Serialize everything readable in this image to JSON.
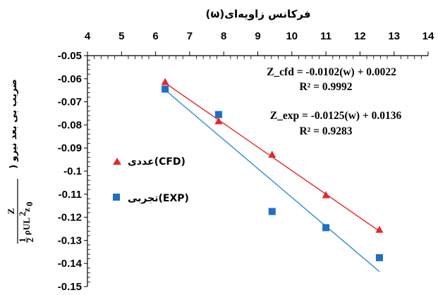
{
  "chart_data": {
    "type": "scatter",
    "title": "",
    "xlabel": "فرکانس زاویه‌ای(ω)",
    "ylabel": "ضریب بی بعد نیرو (",
    "ylabel_formula": {
      "numerator": "Z",
      "half_num": "1",
      "half_den": "2",
      "term": "ρUL",
      "sup": "2",
      "z": "z",
      "sub": "0"
    },
    "xlim": [
      4,
      14
    ],
    "ylim": [
      -0.15,
      -0.05
    ],
    "x_axis_position": "top",
    "x_ticks": [
      4,
      5,
      6,
      7,
      8,
      9,
      10,
      11,
      12,
      13,
      14
    ],
    "x_tick_labels": [
      "4",
      "5",
      "6",
      "7",
      "8",
      "9",
      "10",
      "11",
      "12",
      "13",
      "14"
    ],
    "y_ticks": [
      -0.05,
      -0.06,
      -0.07,
      -0.08,
      -0.09,
      -0.1,
      -0.11,
      -0.12,
      -0.13,
      -0.14,
      -0.15
    ],
    "y_tick_labels": [
      "-0.05",
      "-0.06",
      "-0.07",
      "-0.08",
      "-0.09",
      "-0.1",
      "-0.11",
      "-0.12",
      "-0.13",
      "-0.14",
      "-0.15"
    ],
    "grid": false,
    "series": [
      {
        "name": "عددی(CFD)",
        "marker": "triangle",
        "color": "#e8262a",
        "x": [
          6.28,
          7.85,
          9.42,
          11.0,
          12.57
        ],
        "y": [
          -0.0615,
          -0.0785,
          -0.093,
          -0.1105,
          -0.1255
        ],
        "trendline": {
          "slope": -0.0102,
          "intercept": 0.0022,
          "x_range": [
            6.28,
            12.57
          ]
        },
        "equation": "Z_cfd = -0.0102(w) + 0.0022",
        "r2": "R² = 0.9992"
      },
      {
        "name": "تجربی(EXP)",
        "marker": "square",
        "color": "#1f6fc4",
        "line_color": "#2e8fd0",
        "x": [
          6.28,
          7.85,
          9.42,
          11.0,
          12.57
        ],
        "y": [
          -0.0645,
          -0.0755,
          -0.1175,
          -0.1245,
          -0.1375
        ],
        "trendline": {
          "slope": -0.0125,
          "intercept": 0.0136,
          "x_range": [
            6.28,
            12.57
          ]
        },
        "equation": "Z_exp = -0.0125(w) + 0.0136",
        "r2": "R² = 0.9283"
      }
    ],
    "legend_placement": "center-left"
  }
}
